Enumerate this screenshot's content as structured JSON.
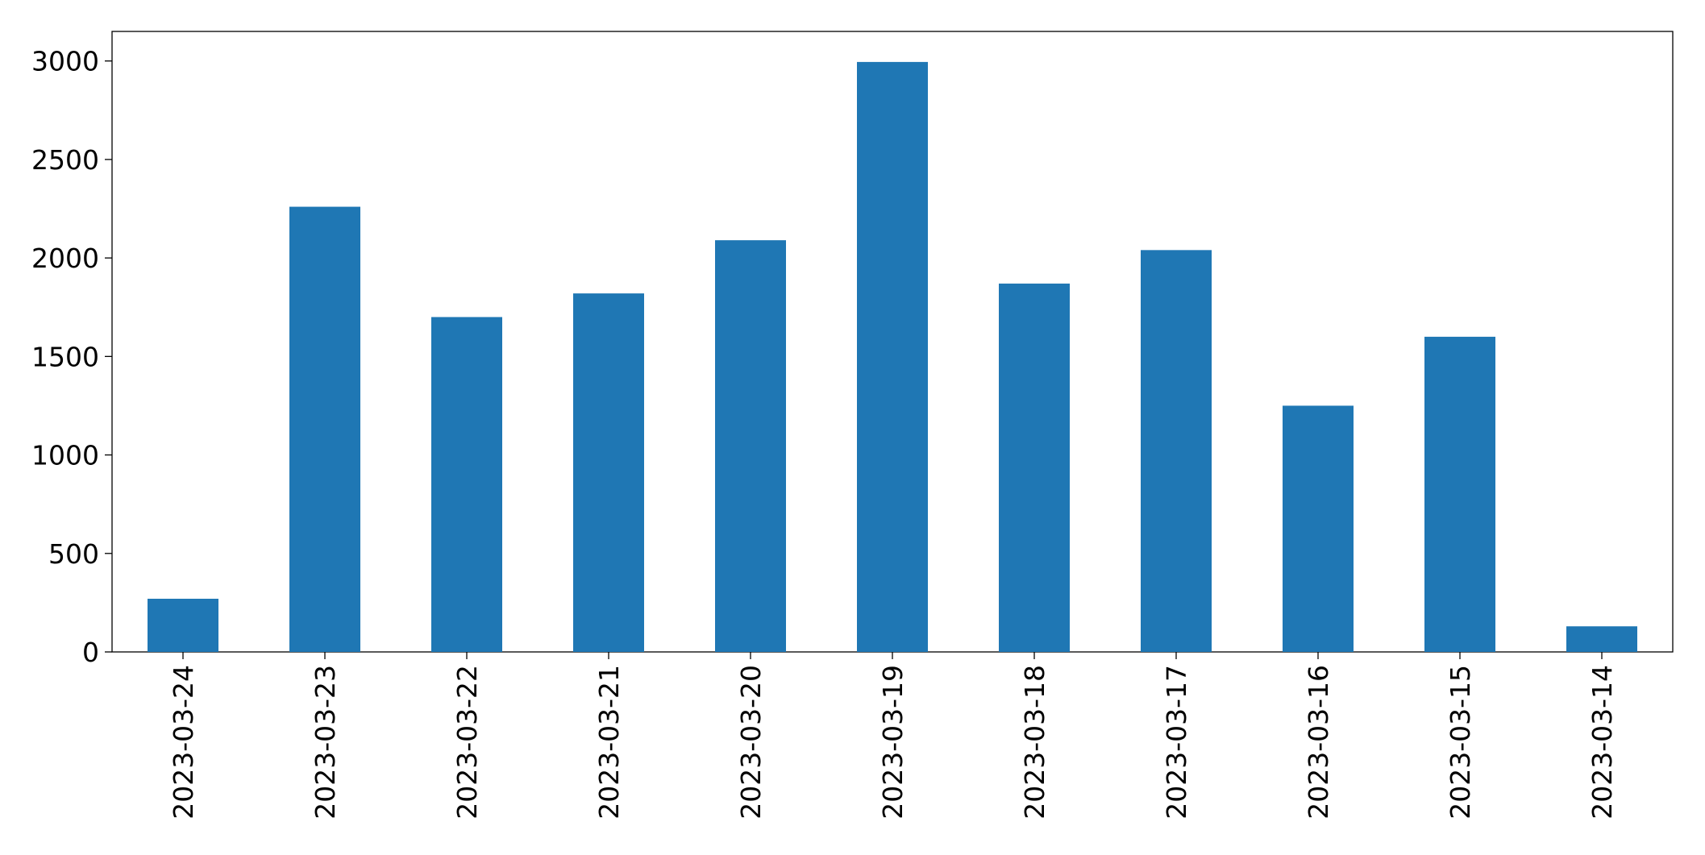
{
  "chart_data": {
    "type": "bar",
    "categories": [
      "2023-03-24",
      "2023-03-23",
      "2023-03-22",
      "2023-03-21",
      "2023-03-20",
      "2023-03-19",
      "2023-03-18",
      "2023-03-17",
      "2023-03-16",
      "2023-03-15",
      "2023-03-14"
    ],
    "values": [
      270,
      2260,
      1700,
      1820,
      2090,
      2995,
      1870,
      2040,
      1250,
      1600,
      130
    ],
    "color": "#1f77b4",
    "ylim": [
      0,
      3150
    ],
    "yticks": [
      0,
      500,
      1000,
      1500,
      2000,
      2500,
      3000
    ],
    "grid": false
  }
}
